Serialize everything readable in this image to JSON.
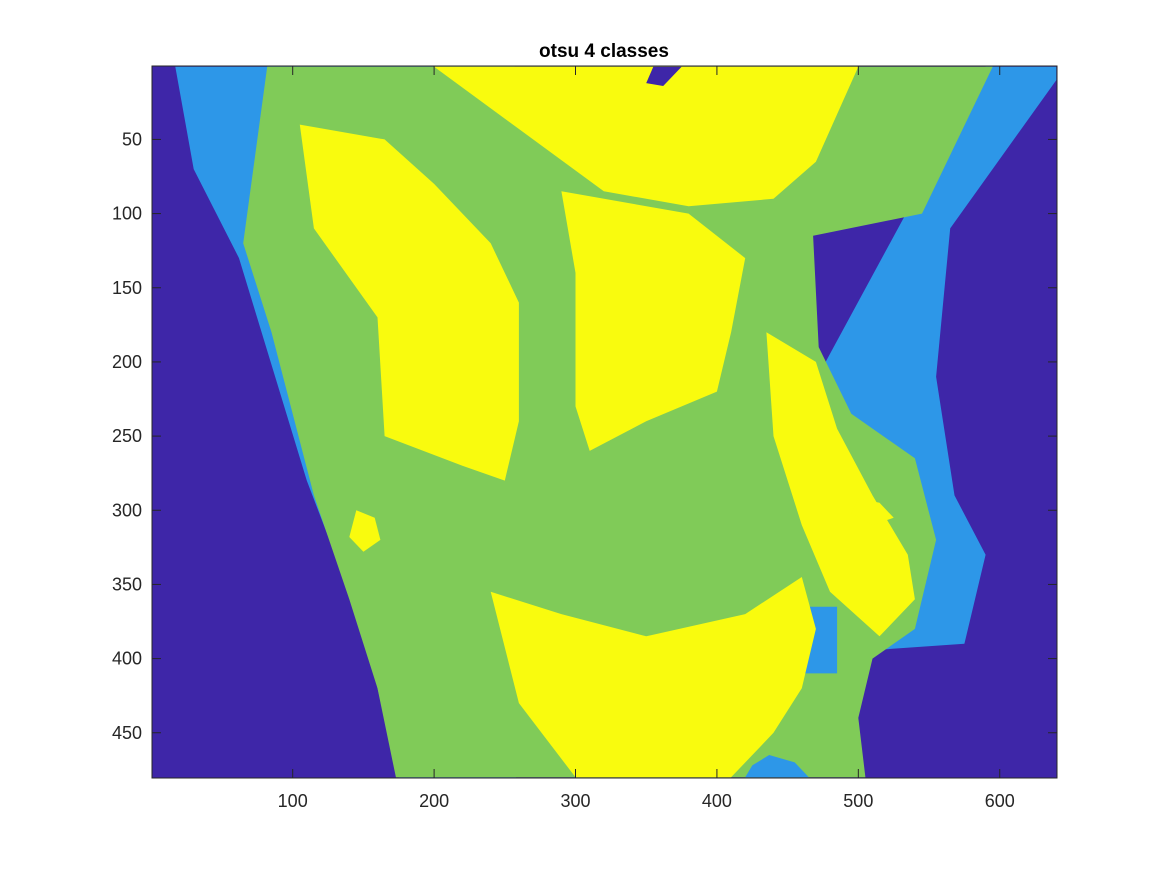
{
  "chart_data": {
    "type": "heatmap",
    "title": "otsu 4 classes",
    "xlabel": "",
    "ylabel": "",
    "xlim": [
      0.5,
      640.5
    ],
    "ylim": [
      0.5,
      480.5
    ],
    "y_direction": "reverse",
    "x_ticks": [
      100,
      200,
      300,
      400,
      500,
      600
    ],
    "y_ticks": [
      50,
      100,
      150,
      200,
      250,
      300,
      350,
      400,
      450
    ],
    "grid": false,
    "colorbar": false,
    "classes": [
      {
        "level": 1,
        "color": "#3e26a8"
      },
      {
        "level": 2,
        "color": "#2d97e8"
      },
      {
        "level": 3,
        "color": "#80cb58"
      },
      {
        "level": 4,
        "color": "#f9fb0e"
      }
    ],
    "regions": [
      {
        "level": 2,
        "points": [
          [
            17,
            1
          ],
          [
            257,
            1
          ],
          [
            243,
            60
          ],
          [
            235,
            170
          ],
          [
            242,
            280
          ],
          [
            258,
            480
          ],
          [
            175,
            480
          ],
          [
            150,
            380
          ],
          [
            110,
            280
          ],
          [
            62,
            130
          ],
          [
            30,
            70
          ]
        ]
      },
      {
        "level": 2,
        "points": [
          [
            590,
            1
          ],
          [
            640,
            1
          ],
          [
            640,
            10
          ],
          [
            565,
            110
          ],
          [
            555,
            210
          ],
          [
            568,
            290
          ],
          [
            590,
            330
          ],
          [
            575,
            390
          ],
          [
            500,
            395
          ],
          [
            420,
            300
          ]
        ]
      },
      {
        "level": 3,
        "points": [
          [
            82,
            1
          ],
          [
            595,
            1
          ],
          [
            545,
            100
          ],
          [
            468,
            115
          ],
          [
            472,
            190
          ],
          [
            495,
            235
          ],
          [
            540,
            265
          ],
          [
            555,
            320
          ],
          [
            540,
            380
          ],
          [
            510,
            400
          ],
          [
            500,
            440
          ],
          [
            505,
            480
          ],
          [
            173,
            480
          ],
          [
            160,
            420
          ],
          [
            140,
            360
          ],
          [
            115,
            290
          ],
          [
            85,
            180
          ],
          [
            65,
            120
          ]
        ]
      },
      {
        "level": 2,
        "points": [
          [
            437,
            465
          ],
          [
            455,
            470
          ],
          [
            465,
            480
          ],
          [
            420,
            480
          ],
          [
            425,
            472
          ]
        ]
      },
      {
        "level": 2,
        "points": [
          [
            457,
            365
          ],
          [
            485,
            365
          ],
          [
            485,
            410
          ],
          [
            457,
            410
          ]
        ]
      },
      {
        "level": 4,
        "points": [
          [
            200,
            1
          ],
          [
            500,
            1
          ],
          [
            470,
            65
          ],
          [
            440,
            90
          ],
          [
            380,
            95
          ],
          [
            320,
            85
          ]
        ]
      },
      {
        "level": 4,
        "points": [
          [
            105,
            40
          ],
          [
            165,
            50
          ],
          [
            200,
            80
          ],
          [
            240,
            120
          ],
          [
            260,
            160
          ],
          [
            260,
            240
          ],
          [
            250,
            280
          ],
          [
            220,
            270
          ],
          [
            165,
            250
          ],
          [
            160,
            170
          ],
          [
            115,
            110
          ]
        ]
      },
      {
        "level": 4,
        "points": [
          [
            290,
            85
          ],
          [
            380,
            100
          ],
          [
            420,
            130
          ],
          [
            410,
            180
          ],
          [
            400,
            220
          ],
          [
            350,
            240
          ],
          [
            310,
            260
          ],
          [
            300,
            230
          ],
          [
            300,
            140
          ]
        ]
      },
      {
        "level": 4,
        "points": [
          [
            435,
            180
          ],
          [
            470,
            200
          ],
          [
            485,
            245
          ],
          [
            510,
            290
          ],
          [
            535,
            330
          ],
          [
            540,
            360
          ],
          [
            515,
            385
          ],
          [
            480,
            355
          ],
          [
            460,
            310
          ],
          [
            440,
            250
          ]
        ]
      },
      {
        "level": 4,
        "points": [
          [
            240,
            355
          ],
          [
            290,
            370
          ],
          [
            350,
            385
          ],
          [
            420,
            370
          ],
          [
            460,
            345
          ],
          [
            470,
            380
          ],
          [
            460,
            420
          ],
          [
            440,
            450
          ],
          [
            410,
            480
          ],
          [
            300,
            480
          ],
          [
            260,
            430
          ]
        ]
      },
      {
        "level": 4,
        "points": [
          [
            145,
            300
          ],
          [
            158,
            305
          ],
          [
            162,
            320
          ],
          [
            150,
            328
          ],
          [
            140,
            318
          ]
        ]
      },
      {
        "level": 4,
        "points": [
          [
            500,
            292
          ],
          [
            515,
            295
          ],
          [
            525,
            305
          ],
          [
            510,
            310
          ],
          [
            495,
            302
          ]
        ]
      },
      {
        "level": 1,
        "points": [
          [
            355,
            1
          ],
          [
            375,
            1
          ],
          [
            362,
            14
          ],
          [
            350,
            12
          ]
        ]
      }
    ]
  }
}
